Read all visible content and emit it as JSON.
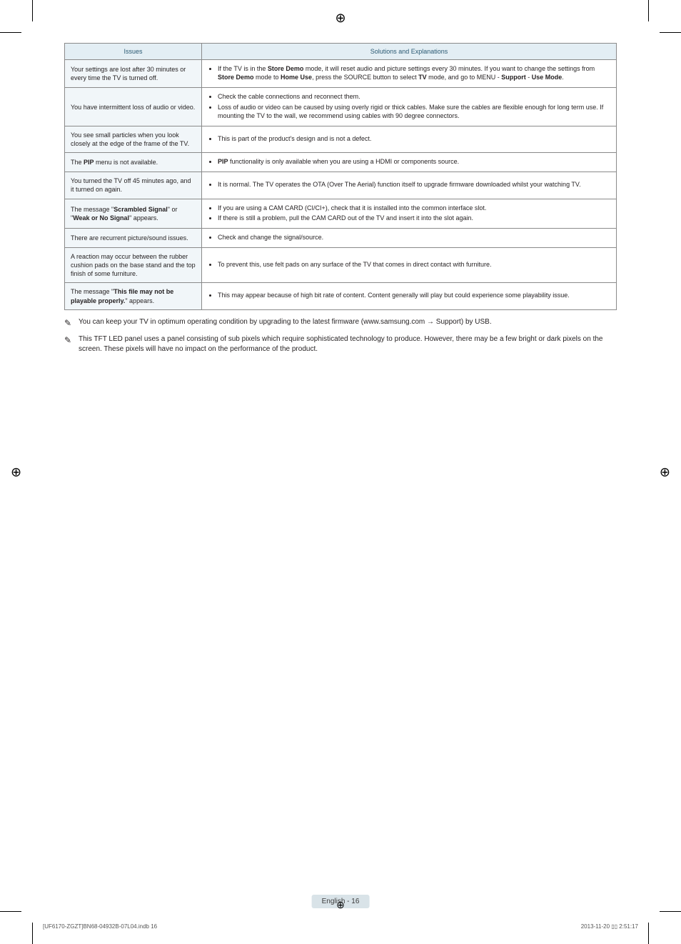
{
  "registration_glyph": "⊕",
  "table": {
    "headers": [
      "Issues",
      "Solutions and Explanations"
    ],
    "header_bg": "#e3eef4",
    "issue_bg": "#f1f6f9",
    "border_color": "#8a8a8a",
    "rows": [
      {
        "issue": "Your settings are lost after 30 minutes or every time the TV is turned off.",
        "solutions": [
          "If the TV is in the <b>Store Demo</b> mode, it will reset audio and picture settings every 30 minutes. If you want to change the settings from <b>Store Demo</b> mode to <b>Home Use</b>, press the SOURCE button to select <b>TV</b> mode, and go to MENU - <b>Support</b> - <b>Use Mode</b>."
        ]
      },
      {
        "issue": "You have intermittent loss of audio or video.",
        "solutions": [
          "Check the cable connections and reconnect them.",
          "Loss of audio or video can be caused by using overly rigid or thick cables. Make sure the cables are flexible enough for long term use. If mounting the TV to the wall, we recommend using cables with 90 degree connectors."
        ]
      },
      {
        "issue": "You see small particles when you look closely at the edge of the frame of the TV.",
        "solutions": [
          "This is part of the product's design and is not a defect."
        ]
      },
      {
        "issue": "The <b>PIP</b> menu is not available.",
        "solutions": [
          "<b>PIP</b> functionality is only available when you are using a HDMI or components source."
        ]
      },
      {
        "issue": "You turned the TV off 45 minutes ago, and it turned on again.",
        "solutions": [
          "It is normal. The TV operates the OTA (Over The Aerial) function itself to upgrade firmware downloaded whilst your watching TV."
        ]
      },
      {
        "issue": "The message \"<b>Scrambled Signal</b>\" or \"<b>Weak or No Signal</b>\" appears.",
        "solutions": [
          "If you are using a CAM CARD (CI/CI+), check that it is installed into the common interface slot.",
          "If there is still a problem, pull the CAM CARD out of the TV and insert it into the slot again."
        ]
      },
      {
        "issue": "There are recurrent picture/sound issues.",
        "solutions": [
          "Check and change the signal/source."
        ]
      },
      {
        "issue": "A reaction may occur between the rubber cushion pads on the base stand and the top finish of some furniture.",
        "solutions": [
          "To prevent this, use felt pads on any surface of the TV that comes in direct contact with furniture."
        ]
      },
      {
        "issue": "The message \"<b>This file may not be playable properly.</b>\" appears.",
        "solutions": [
          "This may appear because of high bit rate of content. Content generally will play but could experience some playability issue."
        ]
      }
    ]
  },
  "notes": [
    "You can keep your TV in optimum operating condition by upgrading to the latest firmware (www.samsung.com → Support) by USB.",
    "This TFT LED panel uses a panel consisting of sub pixels which require sophisticated technology to produce. However, there may be a few bright or dark pixels on the screen. These pixels will have no impact on the performance of the product."
  ],
  "note_icon": "✎",
  "footer": {
    "page_label": "English - 16",
    "left": "[UF6170-ZGZT]BN68-04932B-07L04.indb   16",
    "right": "2013-11-20   ▯▯ 2:51:17"
  }
}
